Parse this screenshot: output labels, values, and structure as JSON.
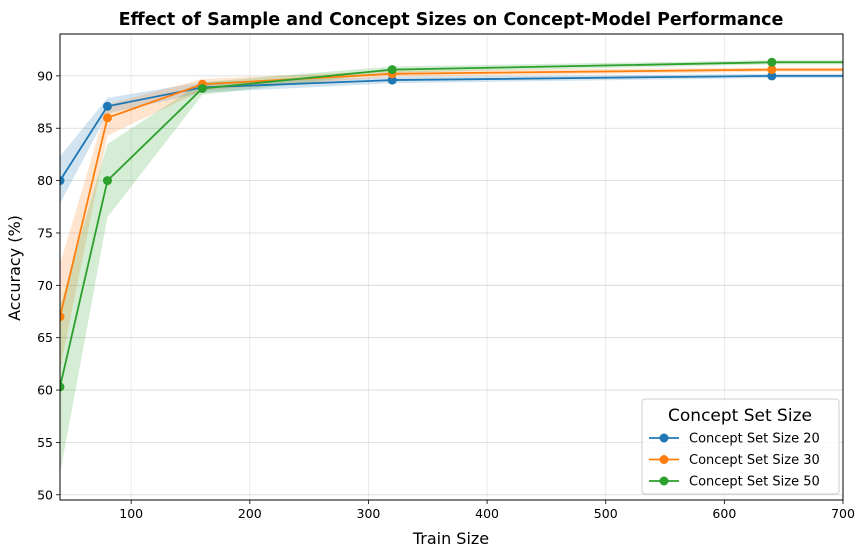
{
  "chart_data": {
    "type": "line",
    "title": "Effect of Sample and Concept Sizes on Concept-Model Performance",
    "xlabel": "Train Size",
    "ylabel": "Accuracy (%)",
    "xlim": [
      40,
      700
    ],
    "ylim": [
      49.5,
      94
    ],
    "xticks": [
      100,
      200,
      300,
      400,
      500,
      600,
      700
    ],
    "yticks": [
      50,
      55,
      60,
      65,
      70,
      75,
      80,
      85,
      90
    ],
    "grid": true,
    "x": [
      40,
      80,
      160,
      320,
      640
    ],
    "series": [
      {
        "name": "Concept Set Size 20",
        "color": "#1f77b4",
        "values": [
          80.0,
          87.1,
          88.9,
          89.6,
          90.0
        ],
        "lower": [
          77.8,
          86.4,
          88.4,
          89.3,
          89.8
        ],
        "upper": [
          82.3,
          87.9,
          89.4,
          89.9,
          90.2
        ]
      },
      {
        "name": "Concept Set Size 30",
        "color": "#ff7f0e",
        "values": [
          67.0,
          86.0,
          89.2,
          90.2,
          90.6
        ],
        "lower": [
          62.0,
          84.3,
          88.6,
          89.9,
          90.4
        ],
        "upper": [
          72.0,
          87.3,
          89.7,
          90.5,
          90.8
        ]
      },
      {
        "name": "Concept Set Size 50",
        "color": "#2ca02c",
        "values": [
          60.3,
          80.0,
          88.8,
          90.6,
          91.3
        ],
        "lower": [
          52.0,
          76.5,
          88.2,
          90.3,
          91.1
        ],
        "upper": [
          68.0,
          83.5,
          89.4,
          90.9,
          91.5
        ]
      }
    ],
    "legend": {
      "title": "Concept Set Size",
      "placement": "lower-right"
    }
  }
}
